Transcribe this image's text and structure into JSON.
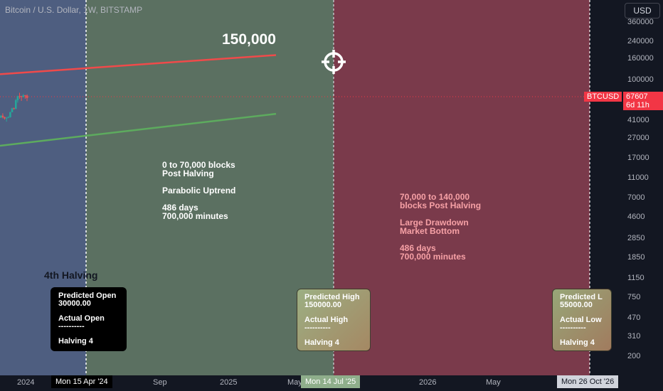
{
  "header": {
    "symbol_line": "Bitcoin / U.S. Dollar, 1W, BITSTAMP"
  },
  "toolbar": {
    "currency_button": "USD"
  },
  "annotations": {
    "target_price": "150,000",
    "halving_title": "4th Halving",
    "phase1_lines": [
      "0 to 70,000 blocks",
      "Post Halving",
      "",
      "Parabolic Uptrend",
      "",
      "486 days",
      "700,000 minutes"
    ],
    "phase2_lines": [
      "70,000 to 140,000",
      "blocks Post Halving",
      "",
      "Large Drawdown",
      "Market Bottom",
      "",
      "486 days",
      "700,000 minutes"
    ]
  },
  "cards": [
    {
      "lines": [
        "Predicted Open",
        "30000.00",
        "",
        "Actual Open",
        "----------",
        "",
        "Halving 4"
      ]
    },
    {
      "lines": [
        "Predicted High",
        "150000.00",
        "",
        "Actual High",
        "----------",
        "",
        "Halving 4"
      ]
    },
    {
      "lines": [
        "Predicted L",
        "55000.00",
        "",
        "Actual Low",
        "----------",
        "",
        "Halving 4"
      ]
    }
  ],
  "price_tags": {
    "symbol": "BTCUSD",
    "last_price": "67607",
    "countdown": "6d 11h"
  },
  "chart_data": {
    "type": "line",
    "y_scale": "log",
    "ylim": [
      150,
      440000
    ],
    "x_ticks": [
      "2024",
      "Sep",
      "2025",
      "May",
      "2026",
      "May"
    ],
    "y_ticks": [
      360000,
      240000,
      160000,
      100000,
      67000,
      41000,
      27000,
      17000,
      11000,
      7000,
      4600,
      2850,
      1850,
      1150,
      750,
      470,
      310,
      200
    ],
    "highlighted_dates": [
      "Mon 15 Apr '24",
      "Mon 14 Jul '25",
      "Mon 26 Oct '26"
    ],
    "last_price": 67607,
    "series": [
      {
        "color": "#f04a4a",
        "x": [
          "2024-01-01",
          "2026-11-02"
        ],
        "y": [
          112000,
          172000
        ]
      },
      {
        "color": "#5dab5e",
        "x": [
          "2024-01-01",
          "2026-11-02"
        ],
        "y": [
          22500,
          46000
        ]
      }
    ],
    "candles": [
      [
        "2024-01-01",
        42200,
        44700,
        42000,
        44100
      ],
      [
        "2024-01-08",
        44100,
        46500,
        41600,
        42700
      ],
      [
        "2024-01-15",
        42700,
        43100,
        40500,
        41600
      ],
      [
        "2024-01-22",
        41600,
        42800,
        38600,
        42100
      ],
      [
        "2024-01-29",
        42100,
        43800,
        41800,
        42600
      ],
      [
        "2024-02-05",
        42600,
        48200,
        42300,
        47800
      ],
      [
        "2024-02-12",
        47800,
        52800,
        47600,
        52100
      ],
      [
        "2024-02-19",
        52100,
        52900,
        50600,
        51600
      ],
      [
        "2024-02-26",
        51600,
        64000,
        50900,
        62500
      ],
      [
        "2024-03-04",
        62500,
        69200,
        59200,
        68400
      ],
      [
        "2024-03-11",
        68400,
        73800,
        64600,
        68300
      ],
      [
        "2024-03-18",
        68300,
        68900,
        61500,
        67200
      ],
      [
        "2024-03-25",
        67200,
        71700,
        66400,
        69600
      ],
      [
        "2024-04-01",
        69600,
        70300,
        64500,
        69300
      ],
      [
        "2024-04-08",
        69300,
        71200,
        61200,
        65600
      ]
    ]
  },
  "colors": {
    "background": "#131722",
    "blue_zone": "#4e5e80",
    "green_zone": "#5b7061",
    "red_zone": "#7a3a4b",
    "red_line": "#f04a4a",
    "green_line": "#5dab5e",
    "candle_up": "#26a69a",
    "candle_down": "#ef5350"
  }
}
